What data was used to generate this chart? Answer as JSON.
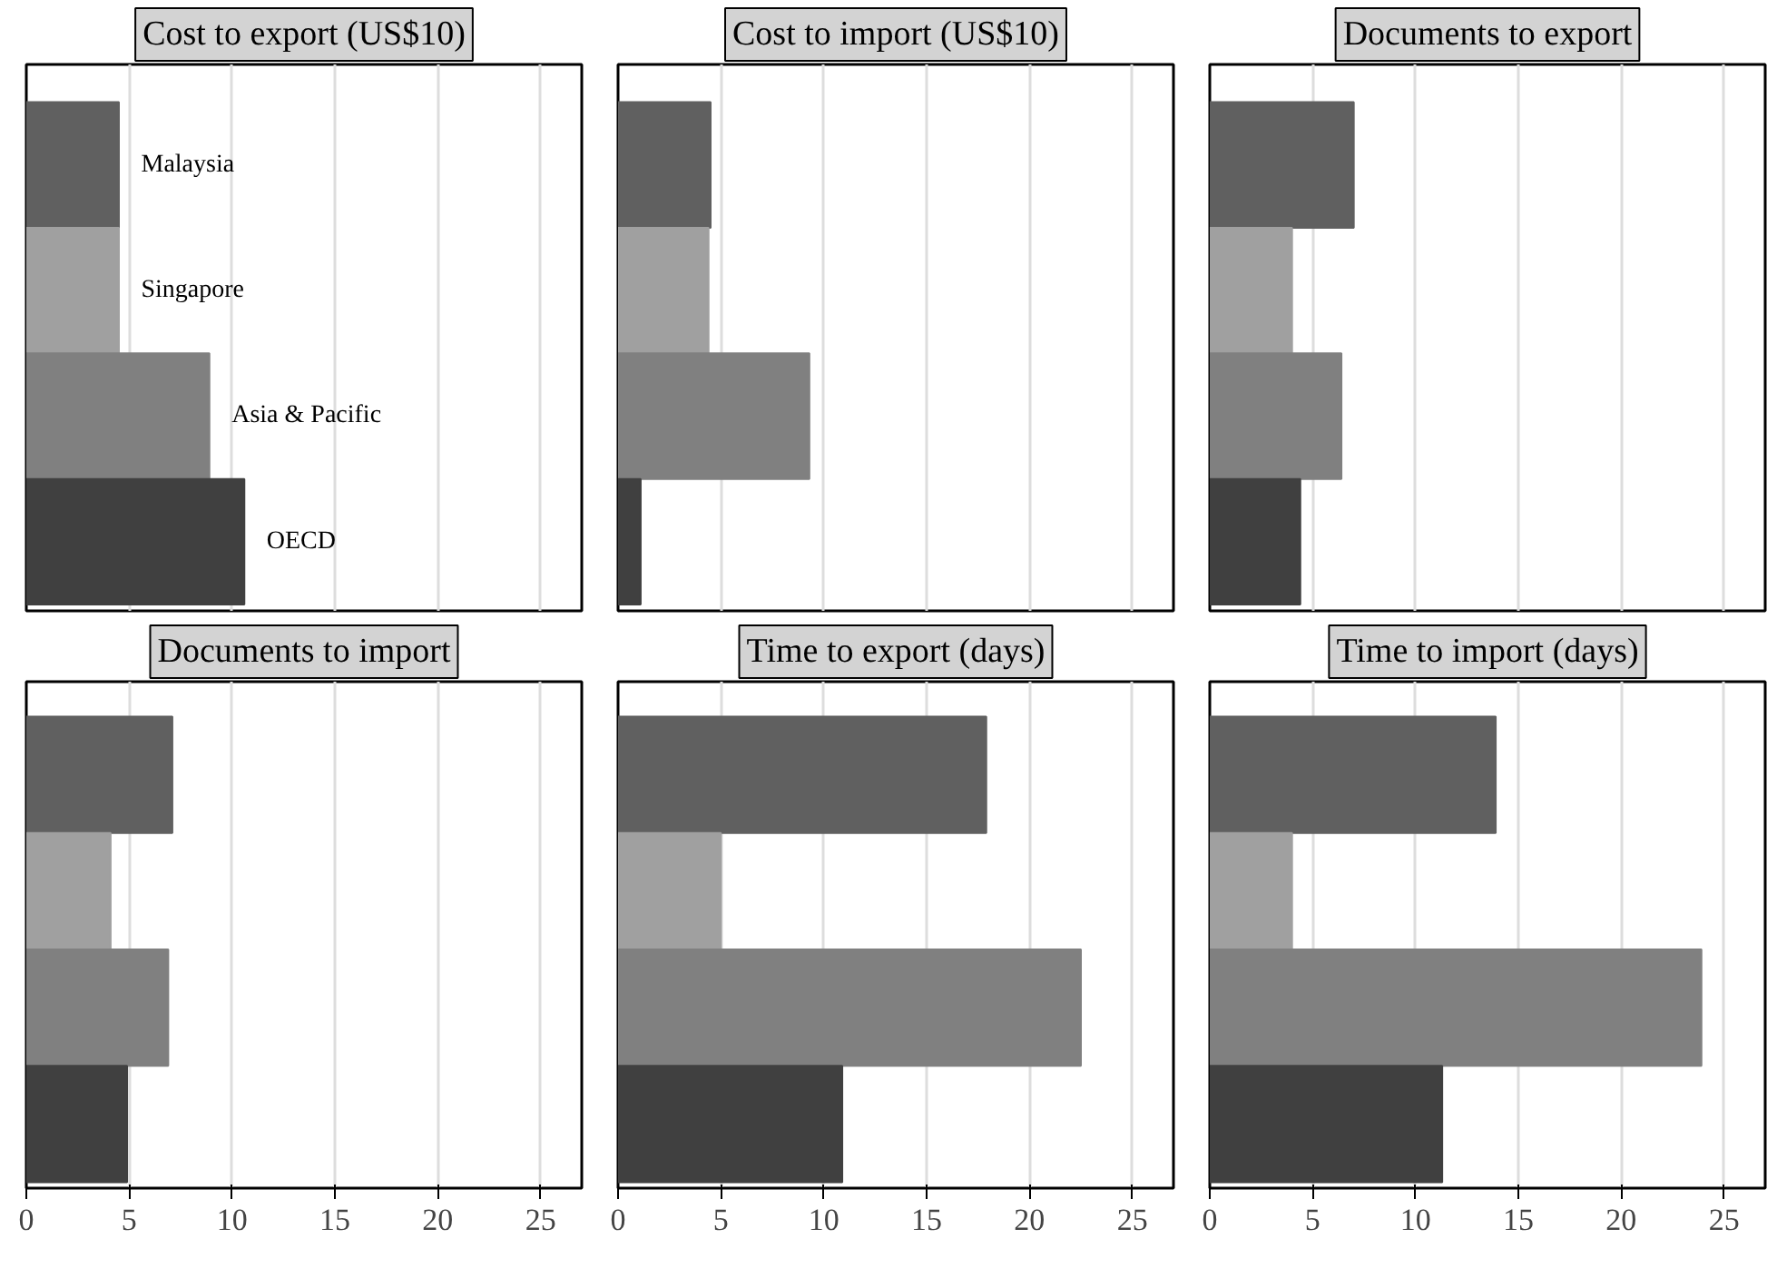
{
  "chart_data": [
    {
      "type": "bar",
      "orientation": "horizontal",
      "title": "Cost to export (US$10)",
      "categories": [
        "Malaysia",
        "Singapore",
        "Asia & Pacific",
        "OECD"
      ],
      "values": [
        4.5,
        4.5,
        8.9,
        10.6
      ],
      "colors": [
        "#606060",
        "#a0a0a0",
        "#808080",
        "#404040"
      ],
      "xlim": [
        0,
        27
      ],
      "xticks": [
        0,
        5,
        10,
        15,
        20,
        25
      ],
      "grid": "x",
      "tick_labels": false
    },
    {
      "type": "bar",
      "orientation": "horizontal",
      "title": "Cost to import (US$10)",
      "categories": [
        null,
        null,
        null,
        null
      ],
      "values": [
        4.5,
        4.4,
        9.3,
        1.1
      ],
      "colors": [
        "#606060",
        "#a0a0a0",
        "#808080",
        "#404040"
      ],
      "xlim": [
        0,
        27
      ],
      "xticks": [
        0,
        5,
        10,
        15,
        20,
        25
      ],
      "grid": "x",
      "tick_labels": false
    },
    {
      "type": "bar",
      "orientation": "horizontal",
      "title": "Documents to export",
      "categories": [
        null,
        null,
        null,
        null
      ],
      "values": [
        7.0,
        4.0,
        6.4,
        4.4
      ],
      "colors": [
        "#606060",
        "#a0a0a0",
        "#808080",
        "#404040"
      ],
      "xlim": [
        0,
        27
      ],
      "xticks": [
        0,
        5,
        10,
        15,
        20,
        25
      ],
      "grid": "x",
      "tick_labels": false
    },
    {
      "type": "bar",
      "orientation": "horizontal",
      "title": "Documents to import",
      "categories": [
        null,
        null,
        null,
        null
      ],
      "values": [
        7.1,
        4.1,
        6.9,
        4.9
      ],
      "colors": [
        "#606060",
        "#a0a0a0",
        "#808080",
        "#404040"
      ],
      "xlim": [
        0,
        27
      ],
      "xticks": [
        0,
        5,
        10,
        15,
        20,
        25
      ],
      "grid": "x",
      "tick_labels": "x"
    },
    {
      "type": "bar",
      "orientation": "horizontal",
      "title": "Time to export (days)",
      "categories": [
        null,
        null,
        null,
        null
      ],
      "values": [
        17.9,
        5.0,
        22.5,
        10.9
      ],
      "colors": [
        "#606060",
        "#a0a0a0",
        "#808080",
        "#404040"
      ],
      "xlim": [
        0,
        27
      ],
      "xticks": [
        0,
        5,
        10,
        15,
        20,
        25
      ],
      "grid": "x",
      "tick_labels": "x"
    },
    {
      "type": "bar",
      "orientation": "horizontal",
      "title": "Time to import (days)",
      "categories": [
        null,
        null,
        null,
        null
      ],
      "values": [
        13.9,
        4.0,
        23.9,
        11.3
      ],
      "colors": [
        "#606060",
        "#a0a0a0",
        "#808080",
        "#404040"
      ],
      "xlim": [
        0,
        27
      ],
      "xticks": [
        0,
        5,
        10,
        15,
        20,
        25
      ],
      "grid": "x",
      "tick_labels": "x"
    }
  ]
}
